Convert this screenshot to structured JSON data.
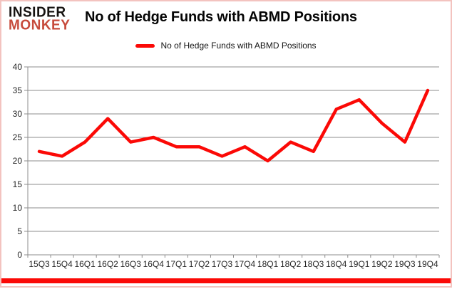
{
  "brand": {
    "line1": "INSIDER",
    "line2": "MONKEY",
    "accent_color": "#c74b3c"
  },
  "header": {
    "title": "No of Hedge Funds with ABMD Positions"
  },
  "legend": {
    "label": "No of Hedge Funds with ABMD Positions",
    "swatch_color": "#fb0906"
  },
  "chart_data": {
    "type": "line",
    "title": "No of Hedge Funds with ABMD Positions",
    "categories": [
      "15Q3",
      "15Q4",
      "16Q1",
      "16Q2",
      "16Q3",
      "16Q4",
      "17Q1",
      "17Q2",
      "17Q3",
      "17Q4",
      "18Q1",
      "18Q2",
      "18Q3",
      "18Q4",
      "19Q1",
      "19Q2",
      "19Q3",
      "19Q4"
    ],
    "series": [
      {
        "name": "No of Hedge Funds with ABMD Positions",
        "values": [
          22,
          21,
          24,
          29,
          24,
          25,
          23,
          23,
          21,
          23,
          20,
          24,
          22,
          31,
          33,
          28,
          24,
          35
        ],
        "color": "#fb0906"
      }
    ],
    "xlabel": "",
    "ylabel": "",
    "ylim": [
      0,
      40
    ],
    "ytick_step": 5,
    "grid": true,
    "grid_color": "#8c8c8c",
    "axis_color": "#8c8c8c",
    "legend_position": "top-center"
  }
}
